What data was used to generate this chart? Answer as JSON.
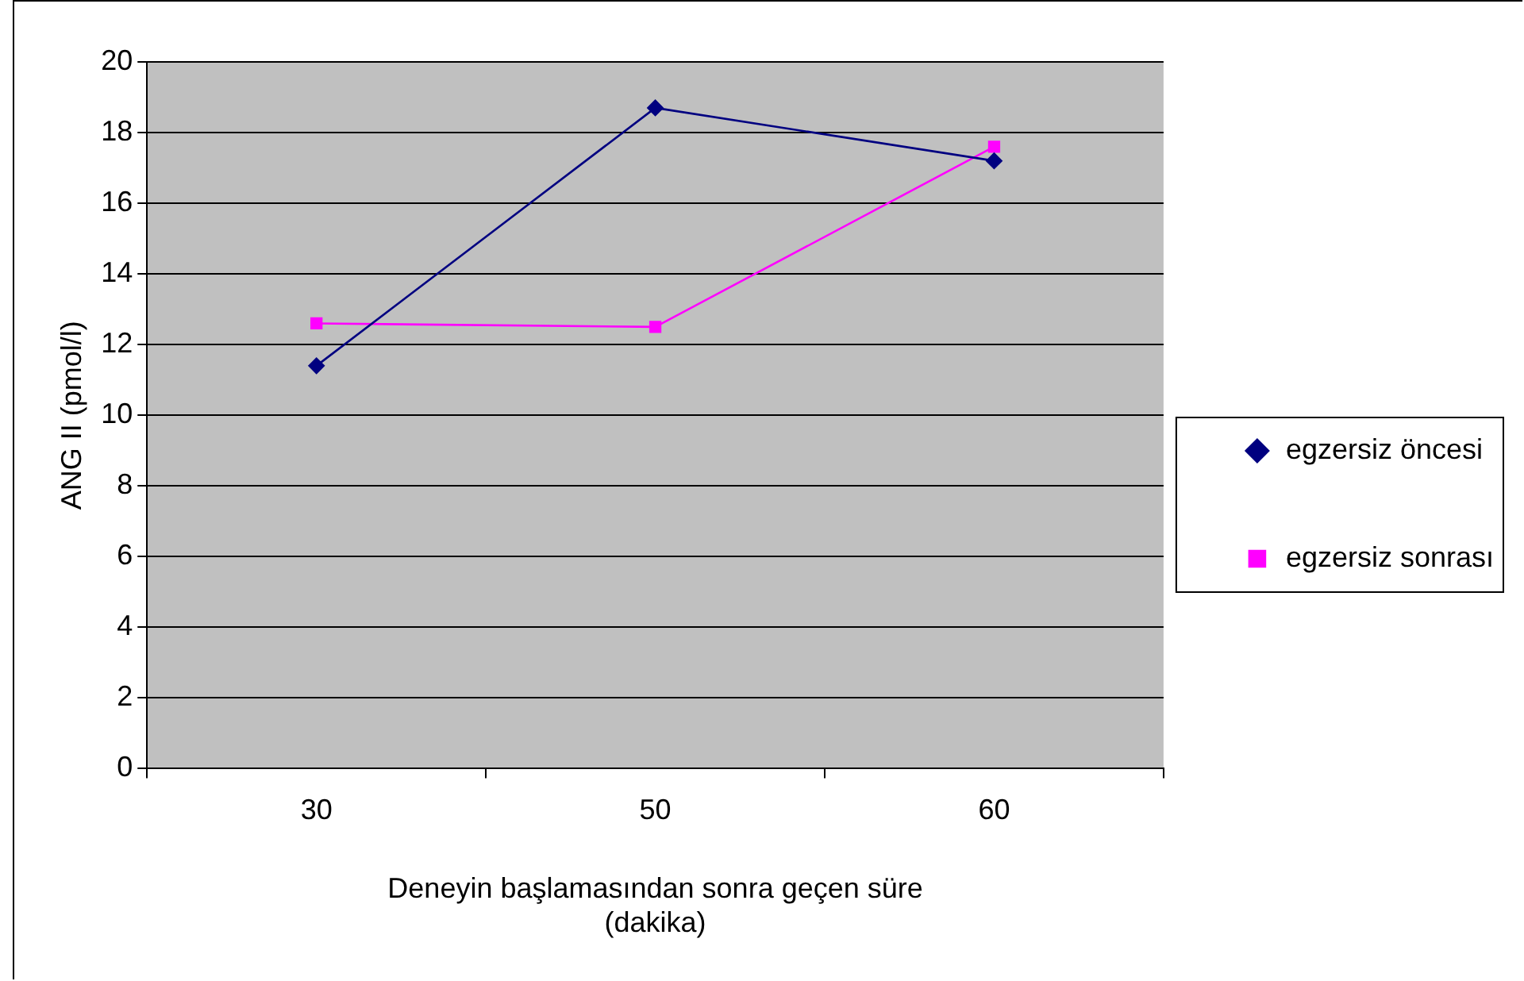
{
  "chart_data": {
    "type": "line",
    "xlabel": "Deneyin başlamasından sonra geçen süre\n(dakika)",
    "ylabel": "ANG II (pmol/l)",
    "categories": [
      "30",
      "50",
      "60"
    ],
    "series": [
      {
        "name": "egzersiz öncesi",
        "color": "#000080",
        "values": [
          11.4,
          18.7,
          17.2
        ],
        "marker": "diamond"
      },
      {
        "name": "egzersiz sonrası",
        "color": "#ff00ff",
        "values": [
          12.6,
          12.5,
          17.6
        ],
        "marker": "square"
      }
    ],
    "ylim": [
      0,
      20
    ],
    "yticks": [
      0,
      2,
      4,
      6,
      8,
      10,
      12,
      14,
      16,
      18,
      20
    ],
    "grid": "y",
    "legend": "right",
    "line_style": "solid"
  }
}
